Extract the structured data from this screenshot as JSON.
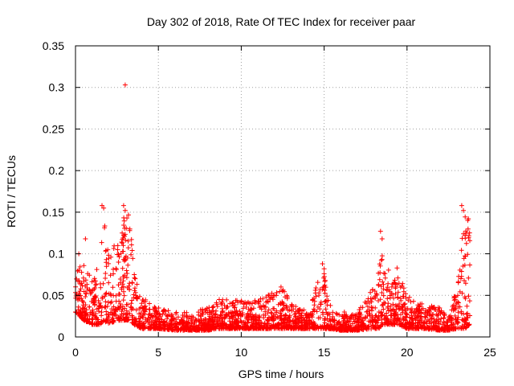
{
  "chart_data": {
    "type": "scatter",
    "title": "Day 302 of 2018, Rate Of TEC Index for receiver paar",
    "xlabel": "GPS time / hours",
    "ylabel": "ROTI / TECUs",
    "xlim": [
      0,
      25
    ],
    "ylim": [
      0,
      0.35
    ],
    "x_ticks": [
      "0",
      "5",
      "10",
      "15",
      "20",
      "25"
    ],
    "y_ticks": [
      "0",
      "0.05",
      "0.1",
      "0.15",
      "0.2",
      "0.25",
      "0.3",
      "0.35"
    ],
    "grid": true,
    "marker": "+",
    "color": "#ff0000",
    "envelope": {
      "x": [
        0,
        0.5,
        1,
        1.5,
        1.7,
        2,
        2.5,
        3,
        3.3,
        3.5,
        4,
        4.5,
        5,
        6,
        7,
        8,
        8.5,
        9,
        10,
        11,
        12,
        12.5,
        13,
        14,
        14.8,
        15,
        15.3,
        16,
        17,
        18,
        18.3,
        18.5,
        19,
        19.5,
        20,
        21,
        22,
        22.5,
        23,
        23.3,
        23.5,
        23.8
      ],
      "y_low": [
        0.03,
        0.02,
        0.015,
        0.015,
        0.02,
        0.015,
        0.02,
        0.02,
        0.02,
        0.015,
        0.01,
        0.01,
        0.01,
        0.008,
        0.008,
        0.008,
        0.01,
        0.01,
        0.01,
        0.01,
        0.01,
        0.01,
        0.01,
        0.01,
        0.01,
        0.01,
        0.01,
        0.008,
        0.008,
        0.01,
        0.01,
        0.015,
        0.015,
        0.015,
        0.01,
        0.01,
        0.008,
        0.008,
        0.01,
        0.01,
        0.01,
        0.015
      ],
      "y_high": [
        0.08,
        0.09,
        0.07,
        0.1,
        0.15,
        0.1,
        0.12,
        0.15,
        0.15,
        0.08,
        0.05,
        0.04,
        0.035,
        0.03,
        0.03,
        0.035,
        0.045,
        0.045,
        0.045,
        0.045,
        0.055,
        0.06,
        0.04,
        0.035,
        0.085,
        0.085,
        0.04,
        0.03,
        0.03,
        0.06,
        0.08,
        0.12,
        0.07,
        0.08,
        0.05,
        0.04,
        0.035,
        0.025,
        0.06,
        0.12,
        0.155,
        0.13
      ]
    },
    "highlights": [
      {
        "x": 0.6,
        "y": 0.118
      },
      {
        "x": 1.6,
        "y": 0.158
      },
      {
        "x": 1.7,
        "y": 0.155
      },
      {
        "x": 2.9,
        "y": 0.158
      },
      {
        "x": 3.0,
        "y": 0.152
      },
      {
        "x": 3.1,
        "y": 0.143
      },
      {
        "x": 3.0,
        "y": 0.303
      },
      {
        "x": 14.9,
        "y": 0.088
      },
      {
        "x": 15.0,
        "y": 0.082
      },
      {
        "x": 18.4,
        "y": 0.127
      },
      {
        "x": 18.5,
        "y": 0.118
      },
      {
        "x": 19.4,
        "y": 0.083
      },
      {
        "x": 23.3,
        "y": 0.158
      },
      {
        "x": 23.4,
        "y": 0.152
      },
      {
        "x": 23.7,
        "y": 0.142
      },
      {
        "x": 23.6,
        "y": 0.125
      },
      {
        "x": 12.4,
        "y": 0.06
      },
      {
        "x": 0.2,
        "y": 0.1
      }
    ]
  }
}
